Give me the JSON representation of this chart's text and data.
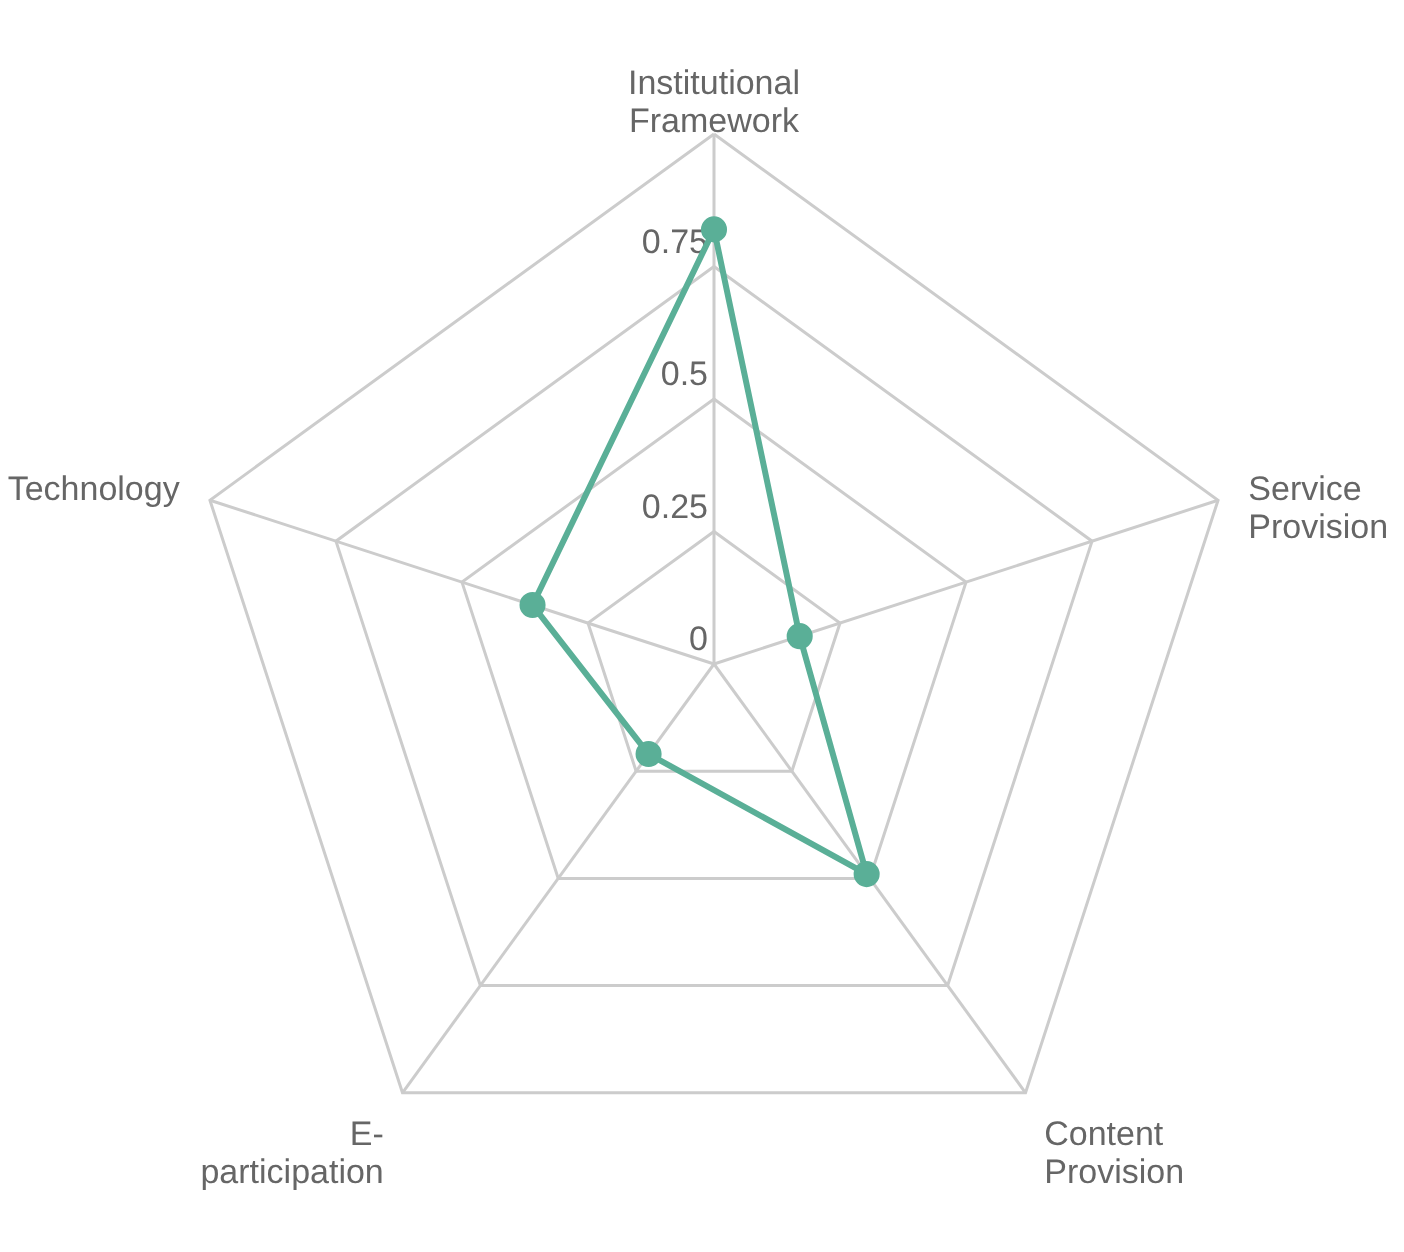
{
  "chart_data": {
    "type": "radar",
    "categories": [
      "Institutional Framework",
      "Service Provision",
      "Content Provision",
      "E-participation",
      "Technology"
    ],
    "series": [
      {
        "color": "#5aaf97",
        "values": [
          0.82,
          0.17,
          0.49,
          0.21,
          0.36
        ]
      }
    ],
    "ylim": [
      0,
      1
    ],
    "yticks": [
      0,
      0.25,
      0.5,
      0.75
    ],
    "grid": true,
    "marker": "circle",
    "line_style": "solid"
  }
}
